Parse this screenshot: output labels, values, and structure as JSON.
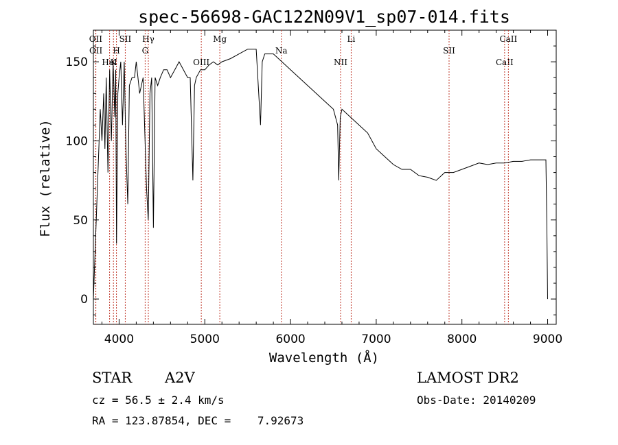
{
  "chart_data": {
    "type": "line",
    "title": "spec-56698-GAC122N09V1_sp07-014.fits",
    "xlabel": "Wavelength (Å)",
    "ylabel": "Flux (relative)",
    "xlim": [
      3700,
      9100
    ],
    "ylim": [
      -16,
      170
    ],
    "xticks": [
      4000,
      5000,
      6000,
      7000,
      8000,
      9000
    ],
    "yticks": [
      0,
      50,
      100,
      150
    ],
    "series": [
      {
        "x": [
          3700,
          3720,
          3740,
          3760,
          3780,
          3800,
          3820,
          3835,
          3850,
          3870,
          3890,
          3910,
          3930,
          3950,
          3960,
          3970,
          3985,
          4000,
          4020,
          4040,
          4060,
          4080,
          4101,
          4120,
          4150,
          4180,
          4200,
          4240,
          4280,
          4320,
          4340,
          4360,
          4380,
          4400,
          4420,
          4450,
          4480,
          4520,
          4560,
          4600,
          4650,
          4700,
          4750,
          4800,
          4830,
          4861,
          4880,
          4900,
          4950,
          5000,
          5050,
          5100,
          5150,
          5200,
          5300,
          5400,
          5500,
          5600,
          5650,
          5670,
          5700,
          5800,
          5900,
          6000,
          6100,
          6200,
          6300,
          6400,
          6500,
          6550,
          6563,
          6580,
          6600,
          6700,
          6800,
          6900,
          7000,
          7100,
          7200,
          7300,
          7400,
          7500,
          7600,
          7700,
          7800,
          7900,
          8000,
          8100,
          8200,
          8300,
          8400,
          8500,
          8600,
          8700,
          8800,
          8900,
          8950,
          8980,
          8990,
          9000
        ],
        "y": [
          0,
          30,
          60,
          90,
          120,
          100,
          130,
          95,
          140,
          80,
          145,
          100,
          150,
          115,
          145,
          35,
          130,
          140,
          150,
          110,
          150,
          95,
          60,
          135,
          140,
          140,
          150,
          130,
          140,
          70,
          50,
          130,
          140,
          45,
          140,
          135,
          140,
          145,
          145,
          140,
          145,
          150,
          145,
          140,
          140,
          75,
          135,
          140,
          145,
          145,
          148,
          150,
          148,
          150,
          152,
          155,
          158,
          158,
          110,
          150,
          155,
          155,
          150,
          145,
          140,
          135,
          130,
          125,
          120,
          110,
          75,
          115,
          120,
          115,
          110,
          105,
          95,
          90,
          85,
          82,
          82,
          78,
          77,
          75,
          80,
          80,
          82,
          84,
          86,
          85,
          86,
          86,
          87,
          87,
          88,
          88,
          88,
          88,
          50,
          0
        ]
      }
    ],
    "annotations": [
      {
        "label": "OII",
        "wavelength": 3727
      },
      {
        "label": "OII",
        "wavelength": 3729
      },
      {
        "label": "HeI",
        "wavelength": 3889
      },
      {
        "label": "SII",
        "wavelength": 4072
      },
      {
        "label": "H",
        "wavelength": 3969
      },
      {
        "label": "K",
        "wavelength": 3934
      },
      {
        "label": "Hγ",
        "wavelength": 4341
      },
      {
        "label": "G",
        "wavelength": 4304
      },
      {
        "label": "OIII",
        "wavelength": 4959
      },
      {
        "label": "Mg",
        "wavelength": 5175
      },
      {
        "label": "Na",
        "wavelength": 5893
      },
      {
        "label": "NII",
        "wavelength": 6584
      },
      {
        "label": "Li",
        "wavelength": 6708
      },
      {
        "label": "SII",
        "wavelength": 7850
      },
      {
        "label": "CaII",
        "wavelength": 8498
      },
      {
        "label": "CaII",
        "wavelength": 8542
      }
    ],
    "grid": false,
    "legend": "none"
  },
  "info": {
    "class": "STAR",
    "subclass": "A2V",
    "survey": "LAMOST DR2",
    "cz": "cz = 56.5 ± 2.4 km/s",
    "obs_date": "Obs-Date: 20140209",
    "coords": "RA = 123.87854, DEC =    7.92673"
  }
}
